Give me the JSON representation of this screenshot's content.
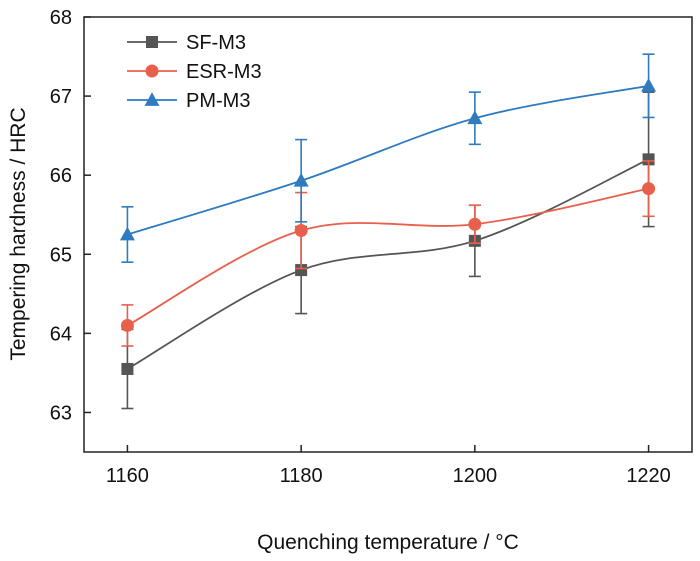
{
  "chart_data": {
    "type": "line",
    "title": "",
    "xlabel": "Quenching temperature / °C",
    "ylabel": "Tempering hardness / HRC",
    "x": [
      1160,
      1180,
      1200,
      1220
    ],
    "xlim": [
      1155,
      1225
    ],
    "ylim": [
      62.5,
      68
    ],
    "xticks": [
      1160,
      1180,
      1200,
      1220
    ],
    "yticks": [
      63,
      64,
      65,
      66,
      67,
      68
    ],
    "grid": false,
    "legend_position": "top-left",
    "series": [
      {
        "name": "SF-M3",
        "marker": "square",
        "color": "#555555",
        "values": [
          63.55,
          64.8,
          65.17,
          66.2
        ],
        "error": [
          0.5,
          0.55,
          0.45,
          0.85
        ]
      },
      {
        "name": "ESR-M3",
        "marker": "circle",
        "color": "#e8604c",
        "values": [
          64.1,
          65.3,
          65.38,
          65.83
        ],
        "error": [
          0.26,
          0.48,
          0.24,
          0.35
        ]
      },
      {
        "name": "PM-M3",
        "marker": "triangle",
        "color": "#2e7bbf",
        "values": [
          65.25,
          65.93,
          66.72,
          67.13
        ],
        "error": [
          0.35,
          0.52,
          0.33,
          0.4
        ]
      }
    ]
  }
}
